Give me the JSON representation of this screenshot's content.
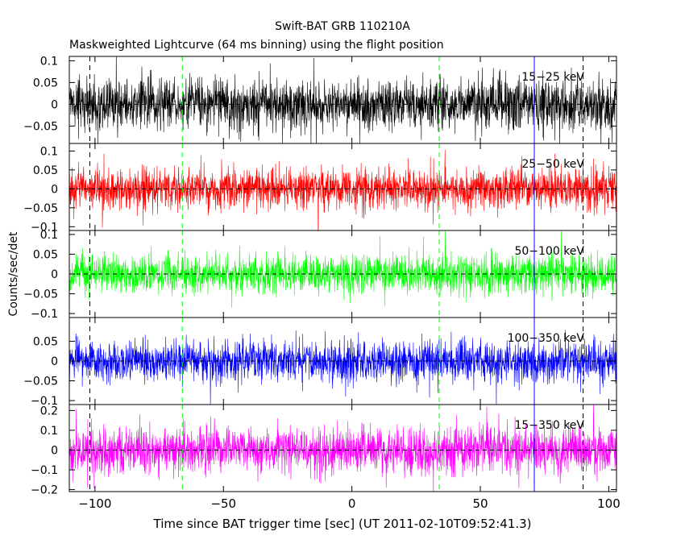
{
  "title": "Swift-BAT GRB 110210A",
  "subtitle": "Maskweighted Lightcurve (64 ms binning) using the flight position",
  "ylabel": "Counts/sec/det",
  "xlabel": "Time since BAT trigger time [sec] (UT 2011-02-10T09:52:41.3)",
  "chart_data": {
    "type": "line",
    "title": "Swift-BAT GRB 110210A",
    "subtitle": "Maskweighted Lightcurve (64 ms binning) using the flight position",
    "xlabel": "Time since BAT trigger time [sec] (UT 2011-02-10T09:52:41.3)",
    "ylabel": "Counts/sec/det",
    "xlim": [
      -110,
      103
    ],
    "xticks": [
      -100,
      -50,
      0,
      50,
      100
    ],
    "bin_seconds": 0.064,
    "grid": false,
    "series": [
      {
        "name": "15-25 keV",
        "label": "15−25 keV",
        "color": "#000000",
        "noise_sigma": 0.03,
        "ylim": [
          -0.09,
          0.11
        ],
        "yticks": [
          -0.05,
          0,
          0.05,
          0.1
        ],
        "ytick_labels": [
          "−0.05",
          "0",
          "0.05",
          "0.1"
        ]
      },
      {
        "name": "25-50 keV",
        "label": "25−50 keV",
        "color": "#ff0000",
        "noise_sigma": 0.027,
        "ylim": [
          -0.11,
          0.12
        ],
        "yticks": [
          -0.1,
          -0.05,
          0,
          0.05,
          0.1
        ],
        "ytick_labels": [
          "−0.1",
          "−0.05",
          "0",
          "0.05",
          "0.1"
        ]
      },
      {
        "name": "50-100 keV",
        "label": "50−100 keV",
        "color": "#00ff00",
        "noise_sigma": 0.024,
        "ylim": [
          -0.11,
          0.11
        ],
        "yticks": [
          -0.1,
          -0.05,
          0,
          0.05,
          0.1
        ],
        "ytick_labels": [
          "−0.1",
          "−0.05",
          "0",
          "0.05",
          "0.1"
        ]
      },
      {
        "name": "100-350 keV",
        "label": "100−350 keV",
        "color": "#0000ff",
        "noise_sigma": 0.026,
        "ylim": [
          -0.11,
          0.11
        ],
        "yticks": [
          -0.1,
          -0.05,
          0,
          0.05
        ],
        "ytick_labels": [
          "−0.1",
          "−0.05",
          "0",
          "0.05"
        ]
      },
      {
        "name": "15-350 keV",
        "label": "15−350 keV",
        "color": "#ff00ff",
        "noise_sigma": 0.06,
        "ylim": [
          -0.21,
          0.23
        ],
        "yticks": [
          -0.2,
          -0.1,
          0,
          0.1,
          0.2
        ],
        "ytick_labels": [
          "−0.2",
          "−0.1",
          "0",
          "0.1",
          "0.2"
        ]
      }
    ],
    "reference_lines": [
      {
        "x": -102,
        "color": "#000000",
        "style": "dashed"
      },
      {
        "x": 90,
        "color": "#000000",
        "style": "dashed"
      },
      {
        "x": -66,
        "color": "#00ff00",
        "style": "dashed"
      },
      {
        "x": 34,
        "color": "#00ff00",
        "style": "dashed"
      },
      {
        "x": 71,
        "color": "#0000ff",
        "style": "solid"
      }
    ]
  }
}
